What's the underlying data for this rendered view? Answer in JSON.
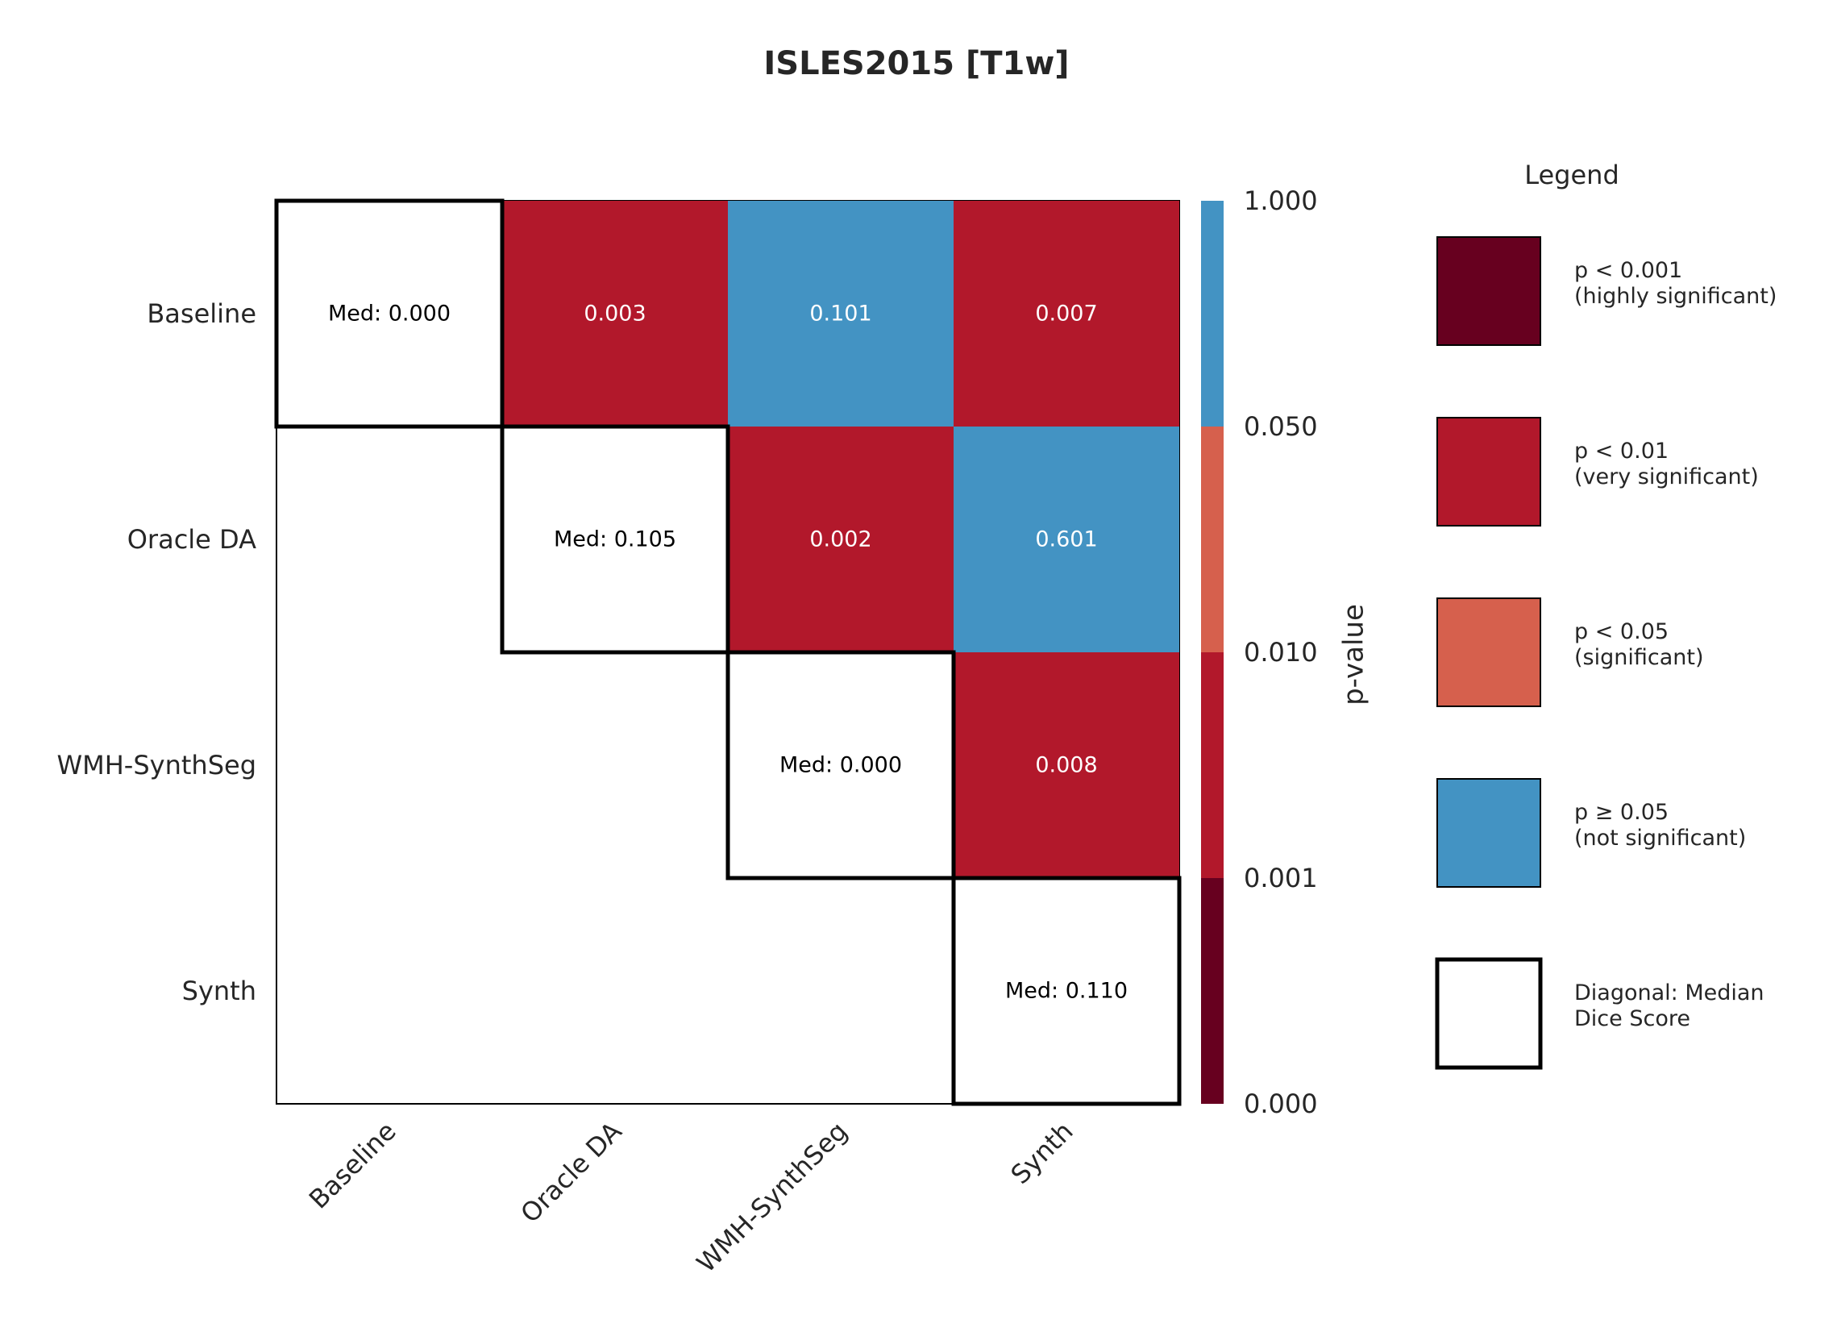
{
  "chart_data": {
    "type": "heatmap",
    "title": "ISLES2015 [T1w]",
    "categories": [
      "Baseline",
      "Oracle DA",
      "WMH-SynthSeg",
      "Synth"
    ],
    "diagonal": [
      "Med: 0.000",
      "Med: 0.105",
      "Med: 0.000",
      "Med: 0.110"
    ],
    "cells": [
      {
        "row": 0,
        "col": 1,
        "value": 0.003,
        "label": "0.003"
      },
      {
        "row": 0,
        "col": 2,
        "value": 0.101,
        "label": "0.101"
      },
      {
        "row": 0,
        "col": 3,
        "value": 0.007,
        "label": "0.007"
      },
      {
        "row": 1,
        "col": 2,
        "value": 0.002,
        "label": "0.002"
      },
      {
        "row": 1,
        "col": 3,
        "value": 0.601,
        "label": "0.601"
      },
      {
        "row": 2,
        "col": 3,
        "value": 0.008,
        "label": "0.008"
      }
    ],
    "colorbar": {
      "label": "p-value",
      "ticks": [
        "1.000",
        "0.050",
        "0.010",
        "0.001",
        "0.000"
      ],
      "band_colors": [
        "#4393c3",
        "#d6604d",
        "#b2182b",
        "#67001f"
      ]
    },
    "legend": {
      "title": "Legend",
      "placement": "right",
      "items": [
        {
          "line1": "p < 0.001",
          "line2": "(highly significant)",
          "color": "#67001f"
        },
        {
          "line1": "p < 0.01",
          "line2": "(very significant)",
          "color": "#b2182b"
        },
        {
          "line1": "p < 0.05",
          "line2": "(significant)",
          "color": "#d6604d"
        },
        {
          "line1": "p ≥ 0.05",
          "line2": "(not significant)",
          "color": "#4393c3"
        },
        {
          "line1": "Diagonal: Median",
          "line2": "Dice Score",
          "color": "#ffffff"
        }
      ]
    }
  }
}
